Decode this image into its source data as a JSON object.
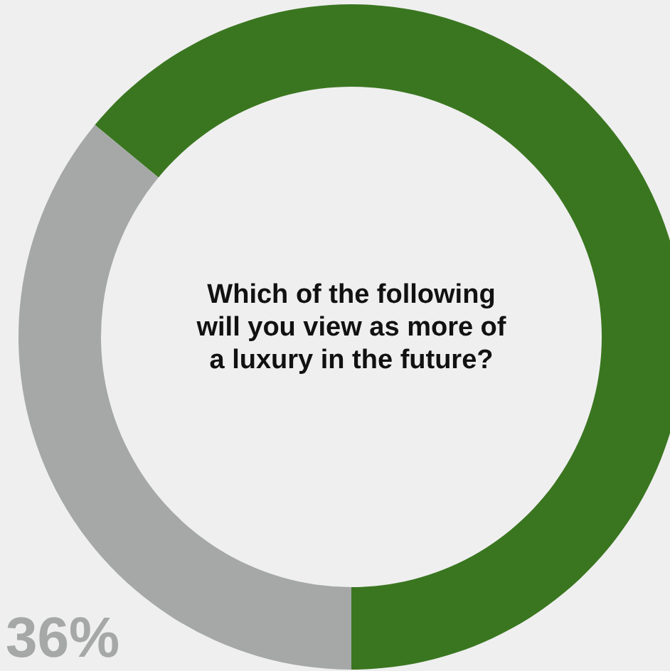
{
  "chart_data": {
    "type": "donut",
    "title": "Which of the following will you view as more of a luxury in the future?",
    "categories": [
      null,
      null
    ],
    "values": [
      64,
      36
    ],
    "colors": [
      "#3a7620",
      "#a5a8a7"
    ],
    "value_labels": [
      null,
      "36%"
    ]
  }
}
